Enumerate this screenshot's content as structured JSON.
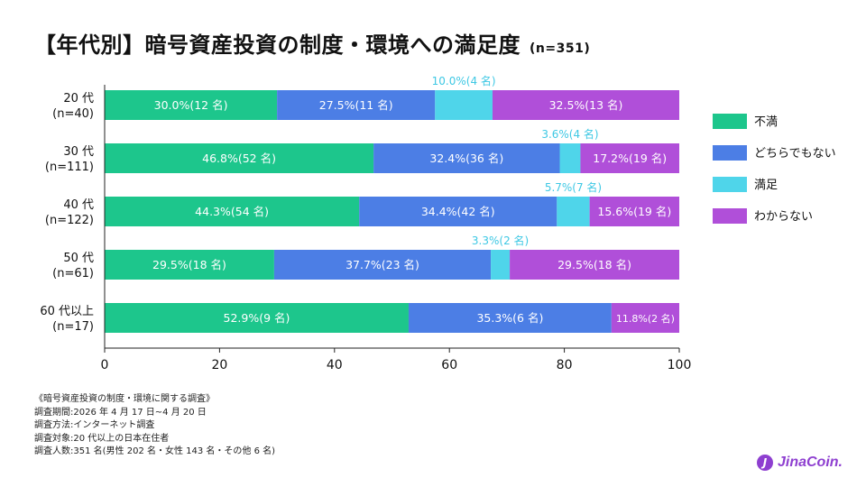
{
  "title": "【年代別】暗号資産投資の制度・環境への満足度",
  "title_n": "(n=351)",
  "chart_data": {
    "type": "bar",
    "orientation": "horizontal",
    "stacked": true,
    "categories": [
      {
        "line1": "20 代",
        "line2": "(n=40)"
      },
      {
        "line1": "30 代",
        "line2": "(n=111)"
      },
      {
        "line1": "40 代",
        "line2": "(n=122)"
      },
      {
        "line1": "50 代",
        "line2": "(n=61)"
      },
      {
        "line1": "60 代以上",
        "line2": "(n=17)"
      }
    ],
    "series": [
      {
        "name": "不満",
        "color": "#1dc68c",
        "values": [
          30.0,
          46.8,
          44.3,
          29.5,
          52.9
        ],
        "labels": [
          "30.0%(12 名)",
          "46.8%(52 名)",
          "44.3%(54 名)",
          "29.5%(18 名)",
          "52.9%(9 名)"
        ]
      },
      {
        "name": "どちらでもない",
        "color": "#4c7ee5",
        "values": [
          27.5,
          32.4,
          34.4,
          37.7,
          35.3
        ],
        "labels": [
          "27.5%(11 名)",
          "32.4%(36 名)",
          "34.4%(42 名)",
          "37.7%(23 名)",
          "35.3%(6 名)"
        ]
      },
      {
        "name": "満足",
        "color": "#4fd5ea",
        "values": [
          10.0,
          3.6,
          5.7,
          3.3,
          0
        ],
        "labels": [
          "10.0%(4 名)",
          "3.6%(4 名)",
          "5.7%(7 名)",
          "3.3%(2 名)",
          ""
        ]
      },
      {
        "name": "わからない",
        "color": "#b04fd9",
        "values": [
          32.5,
          17.2,
          15.6,
          29.5,
          11.8
        ],
        "labels": [
          "32.5%(13 名)",
          "17.2%(19 名)",
          "15.6%(19 名)",
          "29.5%(18 名)",
          "11.8%(2 名)"
        ]
      }
    ],
    "xlim": [
      0,
      100
    ],
    "xticks": [
      0,
      20,
      40,
      60,
      80,
      100
    ],
    "legend_position": "right"
  },
  "footnote": [
    "《暗号資産投資の制度・環境に関する調査》",
    "調査期間:2026 年 4 月 17 日~4 月 20 日",
    "調査方法:インターネット調査",
    "調査対象:20 代以上の日本在住者",
    "調査人数:351 名(男性 202 名・女性 143 名・その他 6 名)"
  ],
  "brand": {
    "icon": "J",
    "name": "JinaCoin."
  }
}
